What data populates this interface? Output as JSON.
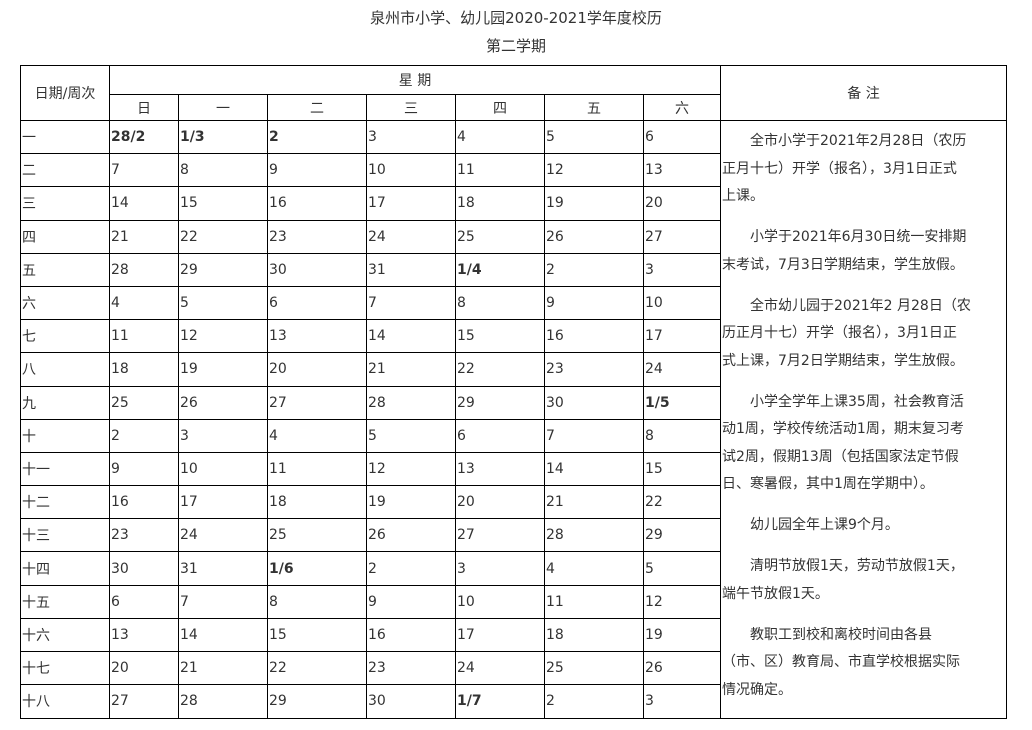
{
  "title": "泉州市小学、幼儿园2020-2021学年度校历",
  "subtitle": "第二学期",
  "header": {
    "week_label": "日期/周次",
    "weekday_group": "星 期",
    "weekdays": [
      "日",
      "一",
      "二",
      "三",
      "四",
      "五",
      "六"
    ],
    "notes_label": "备 注"
  },
  "rows": [
    {
      "week": "一",
      "days": [
        {
          "v": "28/2",
          "b": true
        },
        {
          "v": "1/3",
          "b": true
        },
        {
          "v": "2",
          "b": true
        },
        "3",
        "4",
        "5",
        "6"
      ]
    },
    {
      "week": "二",
      "days": [
        "7",
        "8",
        "9",
        "10",
        "11",
        "12",
        "13"
      ]
    },
    {
      "week": "三",
      "days": [
        "14",
        "15",
        "16",
        "17",
        "18",
        "19",
        "20"
      ]
    },
    {
      "week": "四",
      "days": [
        "21",
        "22",
        "23",
        "24",
        "25",
        "26",
        "27"
      ]
    },
    {
      "week": "五",
      "days": [
        "28",
        "29",
        "30",
        "31",
        {
          "v": "1/4",
          "b": true
        },
        "2",
        "3"
      ]
    },
    {
      "week": "六",
      "days": [
        "4",
        "5",
        "6",
        "7",
        "8",
        "9",
        "10"
      ]
    },
    {
      "week": "七",
      "days": [
        "11",
        "12",
        "13",
        "14",
        "15",
        "16",
        "17"
      ]
    },
    {
      "week": "八",
      "days": [
        "18",
        "19",
        "20",
        "21",
        "22",
        "23",
        "24"
      ]
    },
    {
      "week": "九",
      "days": [
        "25",
        "26",
        "27",
        "28",
        "29",
        "30",
        {
          "v": "1/5",
          "b": true
        }
      ]
    },
    {
      "week": "十",
      "days": [
        "2",
        "3",
        "4",
        "5",
        "6",
        "7",
        "8"
      ]
    },
    {
      "week": "十一",
      "days": [
        "9",
        "10",
        "11",
        "12",
        "13",
        "14",
        "15"
      ]
    },
    {
      "week": "十二",
      "days": [
        "16",
        "17",
        "18",
        "19",
        "20",
        "21",
        "22"
      ]
    },
    {
      "week": "十三",
      "days": [
        "23",
        "24",
        "25",
        "26",
        "27",
        "28",
        "29"
      ]
    },
    {
      "week": "十四",
      "days": [
        "30",
        "31",
        {
          "v": "1/6",
          "b": true
        },
        "2",
        "3",
        "4",
        "5"
      ]
    },
    {
      "week": "十五",
      "days": [
        "6",
        "7",
        "8",
        "9",
        "10",
        "11",
        "12"
      ]
    },
    {
      "week": "十六",
      "days": [
        "13",
        "14",
        "15",
        "16",
        "17",
        "18",
        "19"
      ]
    },
    {
      "week": "十七",
      "days": [
        "20",
        "21",
        "22",
        "23",
        "24",
        "25",
        "26"
      ]
    },
    {
      "week": "十八",
      "days": [
        "27",
        "28",
        "29",
        "30",
        {
          "v": "1/7",
          "b": true
        },
        "2",
        "3"
      ]
    }
  ],
  "notes": [
    [
      "全市小学于2021年2月28日（农历",
      "正月十七）开学（报名），3月1日正式",
      "上课。"
    ],
    [
      "小学于2021年6月30日统一安排期",
      "末考试，7月3日学期结束，学生放假。"
    ],
    [
      "全市幼儿园于2021年2 月28日（农",
      "历正月十七）开学（报名），3月1日正",
      "式上课，7月2日学期结束，学生放假。"
    ],
    [
      "小学全学年上课35周，社会教育活",
      "动1周，学校传统活动1周，期末复习考",
      "试2周，假期13周（包括国家法定节假",
      "日、寒暑假，其中1周在学期中）。"
    ],
    [
      "幼儿园全年上课9个月。"
    ],
    [
      "清明节放假1天，劳动节放假1天，",
      "端午节放假1天。"
    ],
    [
      "教职工到校和离校时间由各县",
      "（市、区）教育局、市直学校根据实际",
      "情况确定。"
    ]
  ]
}
